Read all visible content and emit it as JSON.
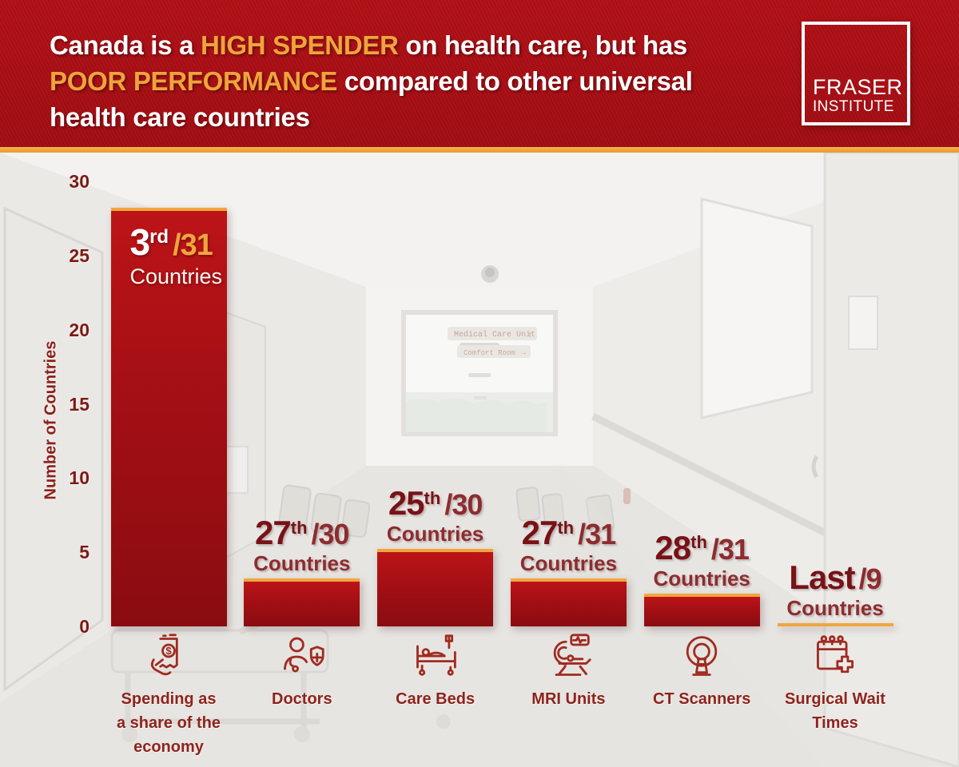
{
  "header": {
    "title_lines": [
      [
        {
          "text": "Canada is a ",
          "emph": false
        },
        {
          "text": "HIGH SPENDER",
          "emph": true
        },
        {
          "text": " on health care, but has",
          "emph": false
        }
      ],
      [
        {
          "text": "POOR PERFORMANCE",
          "emph": true
        },
        {
          "text": " compared to other universal",
          "emph": false
        }
      ],
      [
        {
          "text": "health care countries",
          "emph": false
        }
      ]
    ],
    "logo_line1": "FRASER",
    "logo_line2": "INSTITUTE"
  },
  "background": {
    "description": "white hospital corridor photo, heavily faded",
    "signs": [
      {
        "text": "Medical Care Unit",
        "arrow": "↑"
      },
      {
        "text": "Comfort Room",
        "arrow": "→"
      }
    ]
  },
  "colors": {
    "header_red": "#ac1016",
    "accent_gold": "#efa53e",
    "bar_red_top": "#bc1418",
    "bar_red_bottom": "#8a0c11",
    "rank_dark": "#771217",
    "rank_secondary": "#8d2c30",
    "axis_text": "#7c1a16",
    "category_text": "#8e241c",
    "icon_stroke": "#a02b20"
  },
  "chart_data": {
    "type": "bar",
    "title": "Canada is a HIGH SPENDER on health care, but has POOR PERFORMANCE compared to other universal health care countries",
    "xlabel": "",
    "ylabel": "Number of Countries",
    "ylim": [
      0,
      30
    ],
    "yticks": [
      0,
      5,
      10,
      15,
      20,
      25,
      30
    ],
    "grid": false,
    "legend": "none",
    "categories": [
      "Spending as a share of the economy",
      "Doctors",
      "Care Beds",
      "MRI Units",
      "CT Scanners",
      "Surgical Wait Times"
    ],
    "values": [
      28,
      3,
      5,
      3,
      2,
      0
    ],
    "bars": [
      {
        "rank": "3",
        "ordinal": "rd",
        "total": "/31",
        "caption": "Countries",
        "value": 28,
        "label_placement": "inside",
        "category": "Spending as a share of the economy",
        "category_lines": [
          "Spending as",
          "a share of the",
          "economy"
        ],
        "icon": "receipt-money-icon"
      },
      {
        "rank": "27",
        "ordinal": "th",
        "total": "/30",
        "caption": "Countries",
        "value": 3,
        "label_placement": "above",
        "category": "Doctors",
        "category_lines": [
          "Doctors"
        ],
        "icon": "doctor-shield-icon"
      },
      {
        "rank": "25",
        "ordinal": "th",
        "total": "/30",
        "caption": "Countries",
        "value": 5,
        "label_placement": "above",
        "category": "Care Beds",
        "category_lines": [
          "Care Beds"
        ],
        "icon": "care-bed-icon"
      },
      {
        "rank": "27",
        "ordinal": "th",
        "total": "/31",
        "caption": "Countries",
        "value": 3,
        "label_placement": "above",
        "category": "MRI Units",
        "category_lines": [
          "MRI Units"
        ],
        "icon": "mri-unit-icon"
      },
      {
        "rank": "28",
        "ordinal": "th",
        "total": "/31",
        "caption": "Countries",
        "value": 2,
        "label_placement": "above",
        "category": "CT Scanners",
        "category_lines": [
          "CT Scanners"
        ],
        "icon": "ct-scanner-icon"
      },
      {
        "rank": "Last",
        "ordinal": "",
        "total": "/9",
        "caption": "Countries",
        "value": 0,
        "label_placement": "above",
        "category": "Surgical Wait Times",
        "category_lines": [
          "Surgical Wait",
          "Times"
        ],
        "icon": "calendar-cross-icon"
      }
    ]
  }
}
